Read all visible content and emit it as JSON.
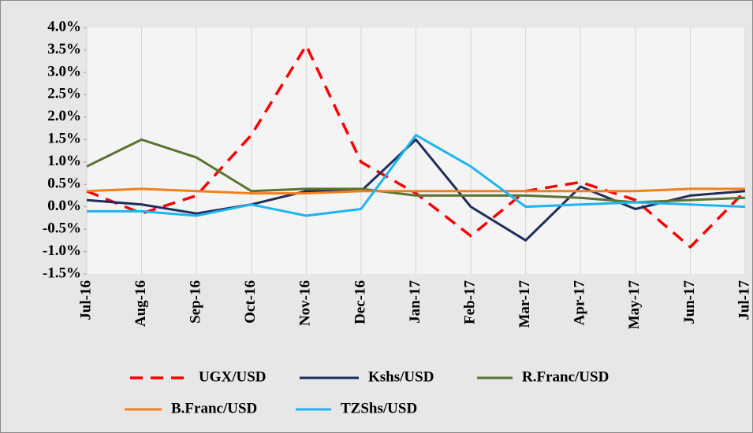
{
  "chart_data": {
    "type": "line",
    "categories": [
      "Jul-16",
      "Aug-16",
      "Sep-16",
      "Oct-16",
      "Nov-16",
      "Dec-16",
      "Jan-17",
      "Feb-17",
      "Mar-17",
      "Apr-17",
      "May-17",
      "Jun-17",
      "Jul-17"
    ],
    "series": [
      {
        "name": "UGX/USD",
        "color": "#ff0000",
        "dashed": true,
        "values": [
          0.35,
          -0.15,
          0.25,
          1.6,
          3.6,
          1.0,
          0.3,
          -0.65,
          0.35,
          0.55,
          0.15,
          -0.9,
          0.35
        ]
      },
      {
        "name": "Kshs/USD",
        "color": "#1f2d5a",
        "values": [
          0.15,
          0.05,
          -0.15,
          0.05,
          0.35,
          0.35,
          1.5,
          0.0,
          -0.75,
          0.45,
          -0.05,
          0.25,
          0.35
        ]
      },
      {
        "name": "R.Franc/USD",
        "color": "#5a7330",
        "values": [
          0.9,
          1.5,
          1.1,
          0.35,
          0.4,
          0.4,
          0.25,
          0.25,
          0.25,
          0.2,
          0.1,
          0.15,
          0.2
        ]
      },
      {
        "name": "B.Franc/USD",
        "color": "#f07f1e",
        "values": [
          0.35,
          0.4,
          0.35,
          0.3,
          0.3,
          0.35,
          0.35,
          0.35,
          0.35,
          0.35,
          0.35,
          0.4,
          0.4
        ]
      },
      {
        "name": "TZShs/USD",
        "color": "#1eb4f0",
        "values": [
          -0.1,
          -0.1,
          -0.2,
          0.05,
          -0.2,
          -0.05,
          1.6,
          0.9,
          0.0,
          0.05,
          0.1,
          0.05,
          0.0
        ]
      }
    ],
    "ylim": [
      -1.5,
      4.0
    ],
    "yticks": [
      {
        "value": -1.5,
        "label": "-1.5%"
      },
      {
        "value": -1.0,
        "label": "-1.0%"
      },
      {
        "value": -0.5,
        "label": "-0.5%"
      },
      {
        "value": 0,
        "label": "0.0%"
      },
      {
        "value": 0.5,
        "label": "0.5%"
      },
      {
        "value": 1.0,
        "label": "1.0%"
      },
      {
        "value": 1.5,
        "label": "1.5%"
      },
      {
        "value": 2.0,
        "label": "2.0%"
      },
      {
        "value": 2.5,
        "label": "2.5%"
      },
      {
        "value": 3.0,
        "label": "3.0%"
      },
      {
        "value": 3.5,
        "label": "3.5%"
      },
      {
        "value": 4.0,
        "label": "4.0%"
      }
    ],
    "grid": true,
    "legend": "bottom"
  }
}
